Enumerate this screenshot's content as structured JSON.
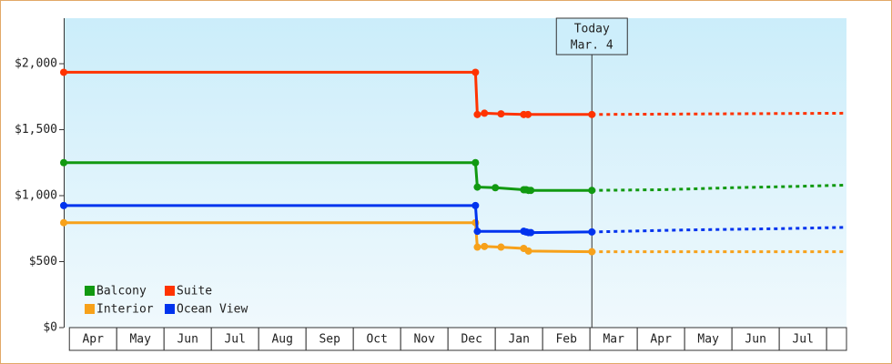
{
  "chart_data": {
    "type": "line",
    "annotation": {
      "label": "Today",
      "date": "Mar. 4",
      "x": 11.04
    },
    "xlim": [
      -0.12,
      16.42
    ],
    "xticks": [
      {
        "value": 0.5,
        "label": "Apr"
      },
      {
        "value": 1.5,
        "label": "May"
      },
      {
        "value": 2.5,
        "label": "Jun"
      },
      {
        "value": 3.5,
        "label": "Jul"
      },
      {
        "value": 4.5,
        "label": "Aug"
      },
      {
        "value": 5.5,
        "label": "Sep"
      },
      {
        "value": 6.5,
        "label": "Oct"
      },
      {
        "value": 7.5,
        "label": "Nov"
      },
      {
        "value": 8.5,
        "label": "Dec"
      },
      {
        "value": 9.5,
        "label": "Jan"
      },
      {
        "value": 10.5,
        "label": "Feb"
      },
      {
        "value": 11.5,
        "label": "Mar"
      },
      {
        "value": 12.5,
        "label": "Apr"
      },
      {
        "value": 13.5,
        "label": "May"
      },
      {
        "value": 14.5,
        "label": "Jun"
      },
      {
        "value": 15.5,
        "label": "Jul"
      }
    ],
    "ylim": [
      0,
      2345
    ],
    "yticks": [
      {
        "value": 0,
        "label": "$0"
      },
      {
        "value": 500,
        "label": "$500"
      },
      {
        "value": 1000,
        "label": "$1,000"
      },
      {
        "value": 1500,
        "label": "$1,500"
      },
      {
        "value": 2000,
        "label": "$2,000"
      }
    ],
    "series": [
      {
        "name": "Balcony",
        "color": "#119911",
        "x": [
          -0.12,
          8.58,
          8.62,
          9.0,
          9.6,
          9.65,
          9.7,
          9.75,
          11.04
        ],
        "values": [
          1250,
          1250,
          1065,
          1060,
          1045,
          1045,
          1040,
          1040,
          1040
        ],
        "forecast_x": [
          11.04,
          12.5,
          14.0,
          15.3,
          16.42
        ],
        "forecast_values": [
          1040,
          1045,
          1060,
          1070,
          1080
        ]
      },
      {
        "name": "Suite",
        "color": "#ff3300",
        "x": [
          -0.12,
          8.58,
          8.62,
          8.77,
          9.12,
          9.6,
          9.69,
          11.04
        ],
        "values": [
          1935,
          1935,
          1615,
          1625,
          1620,
          1615,
          1615,
          1615
        ],
        "forecast_x": [
          11.04,
          13.7,
          16.42
        ],
        "forecast_values": [
          1615,
          1620,
          1625
        ]
      },
      {
        "name": "Interior",
        "color": "#f7a11a",
        "x": [
          -0.12,
          8.58,
          8.62,
          8.77,
          9.12,
          9.6,
          9.7,
          11.04
        ],
        "values": [
          795,
          795,
          610,
          615,
          610,
          600,
          580,
          575
        ],
        "forecast_x": [
          11.04,
          16.42
        ],
        "forecast_values": [
          575,
          575
        ]
      },
      {
        "name": "Ocean View",
        "color": "#0033ee",
        "x": [
          -0.12,
          8.58,
          8.62,
          9.6,
          9.65,
          9.7,
          9.75,
          11.04
        ],
        "values": [
          925,
          925,
          730,
          730,
          725,
          720,
          720,
          725
        ],
        "forecast_x": [
          11.04,
          13.0,
          15.0,
          16.42
        ],
        "forecast_values": [
          725,
          740,
          750,
          760
        ]
      }
    ]
  }
}
